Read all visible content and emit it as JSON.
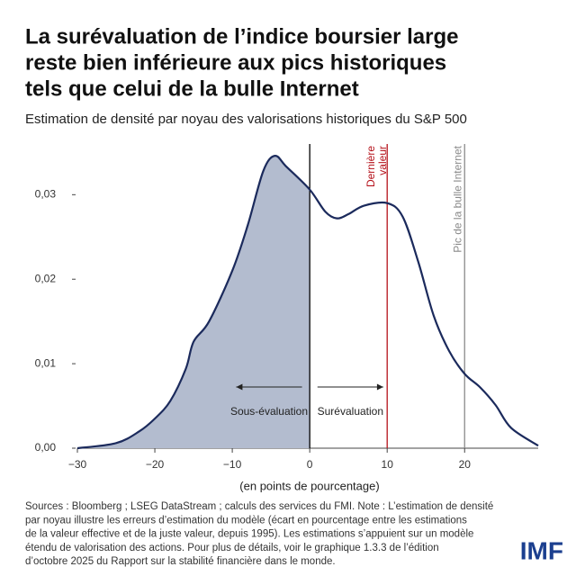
{
  "chart_data": {
    "type": "density",
    "title": [
      "La surévaluation de l’indice boursier large",
      "reste bien inférieure aux pics historiques",
      "tels que celui de la bulle Internet"
    ],
    "subtitle": "Estimation de densité par noyau des valorisations historiques du S&P 500",
    "xlabel": "(en points de pourcentage)",
    "x": [
      -30,
      -25,
      -22,
      -20,
      -18,
      -16,
      -15,
      -13,
      -10,
      -8,
      -6,
      -4.5,
      -3,
      0,
      2,
      3.5,
      5,
      7,
      10,
      12,
      14,
      16,
      18,
      20,
      22,
      24,
      26,
      29.5
    ],
    "series": [
      {
        "color": "#1b2a5c",
        "fill": "#b3bccf",
        "values": [
          0,
          0.0006,
          0.002,
          0.0035,
          0.0056,
          0.0094,
          0.0126,
          0.015,
          0.021,
          0.0264,
          0.0328,
          0.0346,
          0.0333,
          0.0306,
          0.028,
          0.0272,
          0.0277,
          0.0287,
          0.029,
          0.0274,
          0.0221,
          0.0157,
          0.0115,
          0.0088,
          0.0072,
          0.0051,
          0.0024,
          0.0003
        ]
      }
    ],
    "xlim": [
      -30,
      29.5
    ],
    "ylim": [
      0,
      0.036
    ],
    "xticks": [
      {
        "value": -30,
        "label": "−30"
      },
      {
        "value": -20,
        "label": "−20"
      },
      {
        "value": -10,
        "label": "−10"
      },
      0,
      10,
      20
    ],
    "yticks": [
      {
        "value": 0,
        "label": "0,00"
      },
      {
        "value": 0.01,
        "label": "0,01"
      },
      {
        "value": 0.02,
        "label": "0,02"
      },
      {
        "value": 0.03,
        "label": "0,03"
      }
    ],
    "vlines": [
      {
        "value": 0,
        "color": "#000000"
      },
      {
        "value": 10,
        "color": "#b5121b",
        "label": [
          "Dernière",
          "valeur"
        ]
      },
      {
        "value": 20,
        "color": "#8a8a8a",
        "label": [
          "Pic de la bulle Internet"
        ]
      }
    ],
    "arrows": [
      {
        "label": "Sous-évaluation",
        "from": -1,
        "to": -9.5
      },
      {
        "label": "Surévaluation",
        "from": 1,
        "to": 9.5
      }
    ],
    "source": [
      "Sources : Bloomberg ; LSEG DataStream ; calculs des services du FMI. Note : L’estimation de densité",
      "par noyau illustre les erreurs d’estimation du modèle (écart en pourcentage entre les estimations",
      "de la valeur effective et de la juste valeur, depuis 1995). Les estimations s’appuient sur un modèle",
      "étendu de valorisation des actions. Pour plus de détails, voir le graphique 1.3.3 de l’édition",
      "d’octobre 2025 du Rapport sur la stabilité financière dans le monde."
    ],
    "logo": "IMF"
  }
}
